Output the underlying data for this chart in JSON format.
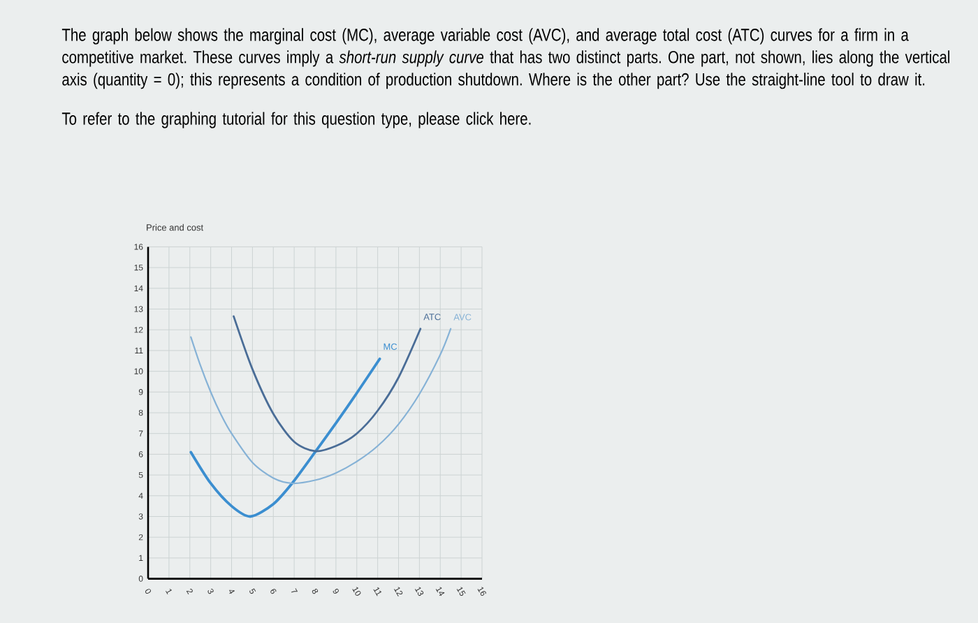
{
  "chart_data": {
    "type": "line",
    "annotations": [
      "The graph below shows the marginal cost (MC), average variable cost (AVC), and average total cost (ATC) curves for a firm in a competitive market. These curves imply a *short-run supply curve* that has two distinct parts. One part, not shown, lies along the vertical axis (quantity = 0); this represents a condition of production shutdown. Where is the other part? Use the straight-line tool to draw it.",
      "To refer to the graphing tutorial for this question type, please click here."
    ],
    "ylabel": "Price and cost",
    "series": [
      {
        "name": "MC",
        "color": "#3b8ed0",
        "x": [
          2.05,
          3,
          4,
          4.9,
          6,
          6.9,
          8,
          9,
          10,
          11.1
        ],
        "values": [
          6.1,
          4.6,
          3.5,
          3.0,
          3.6,
          4.6,
          6.1,
          7.5,
          8.95,
          10.6
        ]
      },
      {
        "name": "ATC",
        "color": "#4a6d97",
        "x": [
          4.1,
          5,
          6,
          7,
          8,
          9,
          10,
          11,
          12,
          13.05
        ],
        "values": [
          12.65,
          10.1,
          7.95,
          6.6,
          6.15,
          6.4,
          7.0,
          8.1,
          9.7,
          12.05
        ]
      },
      {
        "name": "AVC",
        "color": "#86b2d6",
        "x": [
          2.05,
          2.5,
          3,
          3.5,
          4,
          5,
          6,
          6.9,
          8,
          9,
          10,
          11,
          12,
          13,
          14,
          14.5
        ],
        "values": [
          11.65,
          10.3,
          9.0,
          7.9,
          7.0,
          5.6,
          4.85,
          4.6,
          4.75,
          5.1,
          5.65,
          6.4,
          7.45,
          8.9,
          10.8,
          12.05
        ]
      }
    ],
    "xlim": [
      0,
      16
    ],
    "ylim": [
      0,
      16
    ],
    "xticks": [
      0,
      1,
      2,
      3,
      4,
      5,
      6,
      7,
      8,
      9,
      10,
      11,
      12,
      13,
      14,
      15,
      16
    ],
    "yticks": [
      0,
      1,
      2,
      3,
      4,
      5,
      6,
      7,
      8,
      9,
      10,
      11,
      12,
      13,
      14,
      15,
      16
    ],
    "grid": true,
    "marker": "none",
    "line_style": "solid"
  }
}
